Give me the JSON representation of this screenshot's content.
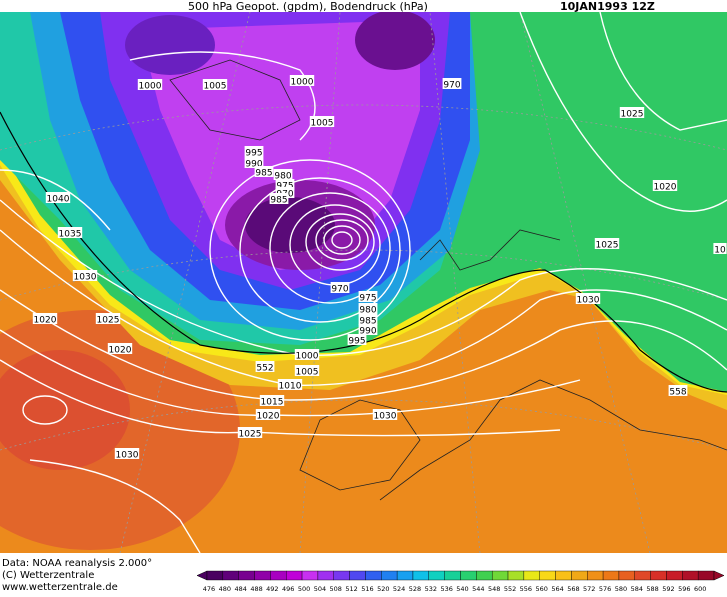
{
  "header": {
    "title": "500 hPa Geopot. (gpdm), Bodendruck (hPa)",
    "date": "10JAN1993 12Z"
  },
  "footer": {
    "lines": [
      "Data: NOAA reanalysis 2.000°",
      "(C) Wetterzentrale",
      "www.wetterzentrale.de"
    ]
  },
  "colorbar": {
    "labels": [
      "476",
      "480",
      "484",
      "488",
      "492",
      "496",
      "500",
      "504",
      "508",
      "512",
      "516",
      "520",
      "524",
      "528",
      "532",
      "536",
      "540",
      "544",
      "548",
      "552",
      "556",
      "560",
      "564",
      "568",
      "572",
      "576",
      "580",
      "584",
      "588",
      "592",
      "596",
      "600"
    ]
  },
  "isobars": [
    "1000",
    "1005",
    "1000",
    "970",
    "1005",
    "995",
    "990",
    "985",
    "980",
    "975",
    "970",
    "985",
    "1040",
    "1035",
    "1025",
    "1020",
    "1025",
    "1030",
    "975",
    "980",
    "985",
    "990",
    "995",
    "970",
    "1020",
    "1025",
    "1020",
    "1030",
    "1000",
    "1005",
    "552",
    "1010",
    "1015",
    "1020",
    "1025",
    "1030",
    "1030",
    "558",
    "10"
  ]
}
